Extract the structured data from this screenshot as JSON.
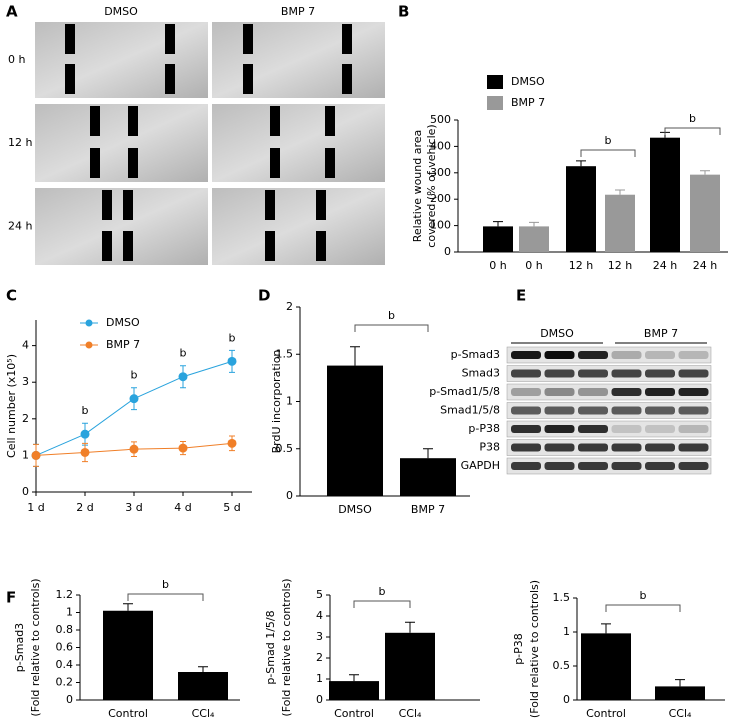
{
  "panel_labels": [
    "A",
    "B",
    "C",
    "D",
    "E",
    "F"
  ],
  "panel_a": {
    "columns": [
      "DMSO",
      "BMP 7"
    ],
    "rows": [
      "0 h",
      "12 h",
      "24 h"
    ]
  },
  "blot": {
    "groups": [
      "DMSO",
      "BMP 7"
    ],
    "rows": [
      "p-Smad3",
      "Smad3",
      "p-Smad1/5/8",
      "Smad1/5/8",
      "p-P38",
      "P38",
      "GAPDH"
    ]
  },
  "chart_data": [
    {
      "type": "bar",
      "ylabel": [
        "Relative wound area",
        "covered (% of vehicle)"
      ],
      "categories": [
        "0 h",
        "0 h",
        "12 h",
        "12 h",
        "24 h",
        "24 h"
      ],
      "values": [
        97,
        97,
        325,
        217,
        433,
        293
      ],
      "errors": [
        18,
        15,
        20,
        18,
        20,
        15
      ],
      "colors": [
        "#000000",
        "#999999",
        "#000000",
        "#999999",
        "#000000",
        "#999999"
      ],
      "legend": [
        {
          "name": "DMSO",
          "color": "#000000"
        },
        {
          "name": "BMP 7",
          "color": "#999999"
        }
      ],
      "ylim": [
        0,
        500
      ],
      "yticks": [
        0,
        100,
        200,
        300,
        400,
        500
      ],
      "annotations": [
        "b",
        "b"
      ]
    },
    {
      "type": "line",
      "ylabel": [
        "Cell number (x10⁵)"
      ],
      "categories": [
        "1 d",
        "2 d",
        "3 d",
        "4 d",
        "5 d"
      ],
      "series": [
        {
          "name": "DMSO",
          "color": "#29a3dd",
          "values": [
            1,
            1.58,
            2.55,
            3.15,
            3.57
          ],
          "errors": [
            0.3,
            0.3,
            0.3,
            0.3,
            0.3
          ]
        },
        {
          "name": "BMP 7",
          "color": "#f07f28",
          "values": [
            1,
            1.08,
            1.17,
            1.2,
            1.33
          ],
          "errors": [
            0.3,
            0.25,
            0.2,
            0.18,
            0.2
          ]
        }
      ],
      "ylim": [
        0,
        4.7
      ],
      "yticks": [
        0,
        1,
        2,
        3,
        4
      ],
      "annotations": [
        "b",
        "b",
        "b",
        "b"
      ]
    },
    {
      "type": "bar",
      "ylabel": [
        "BrdU incorporation"
      ],
      "categories": [
        "DMSO",
        "BMP 7"
      ],
      "values": [
        1.38,
        0.4
      ],
      "errors": [
        0.2,
        0.1
      ],
      "colors": [
        "#000000",
        "#000000"
      ],
      "ylim": [
        0,
        2
      ],
      "yticks": [
        0,
        0.5,
        1,
        1.5,
        2
      ],
      "annotations": [
        "b"
      ]
    },
    {
      "type": "bar",
      "ylabel": [
        "p-Smad3",
        "(Fold relative to controls)"
      ],
      "categories": [
        "Control",
        "CCl₄"
      ],
      "values": [
        1.02,
        0.32
      ],
      "errors": [
        0.08,
        0.06
      ],
      "colors": [
        "#000000",
        "#000000"
      ],
      "ylim": [
        0,
        1.2
      ],
      "yticks": [
        0,
        0.2,
        0.4,
        0.6,
        0.8,
        1,
        1.2
      ],
      "annotations": [
        "b"
      ]
    },
    {
      "type": "bar",
      "ylabel": [
        "p-Smad 1/5/8",
        "(Fold relative to controls)"
      ],
      "categories": [
        "Control",
        "CCl₄"
      ],
      "values": [
        0.9,
        3.2
      ],
      "errors": [
        0.3,
        0.5
      ],
      "colors": [
        "#000000",
        "#000000"
      ],
      "ylim": [
        0,
        5
      ],
      "yticks": [
        0,
        1,
        2,
        3,
        4,
        5
      ],
      "annotations": [
        "b"
      ]
    },
    {
      "type": "bar",
      "ylabel": [
        "p-P38",
        "(Fold relative to controls)"
      ],
      "categories": [
        "Control",
        "CCl₄"
      ],
      "values": [
        0.98,
        0.2
      ],
      "errors": [
        0.14,
        0.1
      ],
      "colors": [
        "#000000",
        "#000000"
      ],
      "ylim": [
        0,
        1.5
      ],
      "yticks": [
        0,
        0.5,
        1,
        1.5
      ],
      "annotations": [
        "b"
      ]
    }
  ]
}
